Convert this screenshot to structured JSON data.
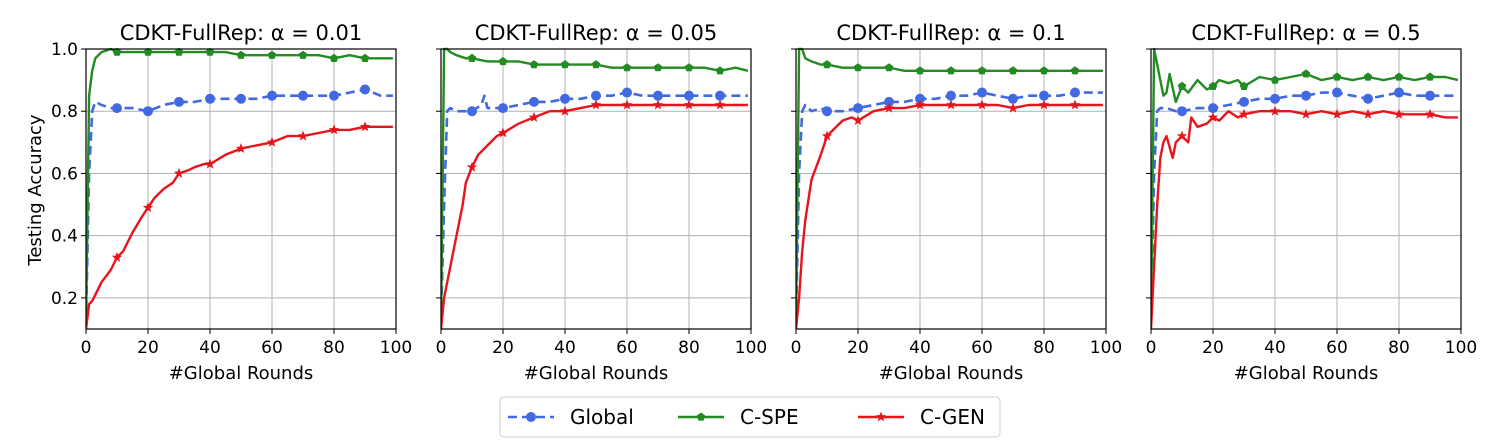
{
  "figure": {
    "ylabel": "Testing Accuracy",
    "xlabel": "#Global Rounds",
    "legend": {
      "placement": "bottom-center",
      "entries": [
        {
          "name": "Global",
          "color": "#4169E1",
          "style": "dashed",
          "marker": "circle"
        },
        {
          "name": "C-SPE",
          "color": "#228B22",
          "style": "solid",
          "marker": "pentagon"
        },
        {
          "name": "C-GEN",
          "color": "#E8141C",
          "style": "solid",
          "marker": "star"
        }
      ]
    }
  },
  "chart_data": [
    {
      "type": "line",
      "title": "CDKT-FullRep: α = 0.01",
      "xlabel": "#Global Rounds",
      "ylabel": "Testing Accuracy",
      "xlim": [
        0,
        100
      ],
      "ylim": [
        0.1,
        1.0
      ],
      "xticks": [
        "0",
        "20",
        "40",
        "60",
        "80",
        "100"
      ],
      "yticks": [
        "0.2",
        "0.4",
        "0.6",
        "0.8",
        "1.0"
      ],
      "grid": true,
      "series": [
        {
          "name": "Global",
          "x": [
            0,
            1,
            2,
            3,
            5,
            8,
            10,
            15,
            20,
            25,
            30,
            35,
            40,
            45,
            50,
            55,
            60,
            65,
            70,
            75,
            80,
            85,
            90,
            95,
            99
          ],
          "y": [
            0.12,
            0.6,
            0.8,
            0.83,
            0.82,
            0.81,
            0.81,
            0.81,
            0.8,
            0.82,
            0.83,
            0.83,
            0.84,
            0.84,
            0.84,
            0.84,
            0.85,
            0.85,
            0.85,
            0.85,
            0.85,
            0.86,
            0.87,
            0.85,
            0.85
          ]
        },
        {
          "name": "C-SPE",
          "x": [
            0,
            1,
            2,
            3,
            5,
            8,
            10,
            15,
            20,
            25,
            30,
            35,
            40,
            45,
            50,
            55,
            60,
            65,
            70,
            75,
            80,
            85,
            90,
            95,
            99
          ],
          "y": [
            0.12,
            0.85,
            0.93,
            0.97,
            0.99,
            1.0,
            0.99,
            0.99,
            0.99,
            0.99,
            0.99,
            0.99,
            0.99,
            0.99,
            0.98,
            0.98,
            0.98,
            0.98,
            0.98,
            0.98,
            0.97,
            0.98,
            0.97,
            0.97,
            0.97
          ]
        },
        {
          "name": "C-GEN",
          "x": [
            0,
            1,
            2,
            3,
            5,
            8,
            10,
            12,
            15,
            18,
            20,
            22,
            25,
            28,
            30,
            33,
            35,
            38,
            40,
            45,
            50,
            55,
            60,
            65,
            70,
            75,
            80,
            85,
            90,
            95,
            99
          ],
          "y": [
            0.1,
            0.18,
            0.19,
            0.21,
            0.25,
            0.29,
            0.33,
            0.35,
            0.41,
            0.46,
            0.49,
            0.52,
            0.55,
            0.57,
            0.6,
            0.61,
            0.62,
            0.63,
            0.63,
            0.66,
            0.68,
            0.69,
            0.7,
            0.72,
            0.72,
            0.73,
            0.74,
            0.74,
            0.75,
            0.75,
            0.75
          ]
        }
      ]
    },
    {
      "type": "line",
      "title": "CDKT-FullRep: α = 0.05",
      "xlabel": "#Global Rounds",
      "ylabel": "",
      "xlim": [
        0,
        100
      ],
      "ylim": [
        0.1,
        1.0
      ],
      "xticks": [
        "0",
        "20",
        "40",
        "60",
        "80",
        "100"
      ],
      "yticks": [
        "0.2",
        "0.4",
        "0.6",
        "0.8",
        "1.0"
      ],
      "grid": true,
      "series": [
        {
          "name": "Global",
          "x": [
            0,
            1,
            2,
            3,
            5,
            8,
            10,
            13,
            14,
            15,
            20,
            25,
            30,
            35,
            40,
            45,
            50,
            55,
            60,
            65,
            70,
            75,
            80,
            85,
            90,
            95,
            99
          ],
          "y": [
            0.12,
            0.5,
            0.8,
            0.81,
            0.8,
            0.8,
            0.8,
            0.82,
            0.85,
            0.81,
            0.81,
            0.82,
            0.83,
            0.83,
            0.84,
            0.84,
            0.85,
            0.85,
            0.86,
            0.85,
            0.85,
            0.85,
            0.85,
            0.85,
            0.85,
            0.85,
            0.85
          ]
        },
        {
          "name": "C-SPE",
          "x": [
            0,
            1,
            2,
            3,
            5,
            8,
            10,
            15,
            20,
            25,
            30,
            35,
            40,
            45,
            50,
            55,
            60,
            65,
            70,
            75,
            80,
            85,
            90,
            95,
            99
          ],
          "y": [
            0.12,
            1.0,
            1.0,
            0.99,
            0.98,
            0.97,
            0.97,
            0.96,
            0.96,
            0.96,
            0.95,
            0.95,
            0.95,
            0.95,
            0.95,
            0.94,
            0.94,
            0.94,
            0.94,
            0.94,
            0.94,
            0.94,
            0.93,
            0.94,
            0.93
          ]
        },
        {
          "name": "C-GEN",
          "x": [
            0,
            1,
            2,
            3,
            5,
            7,
            8,
            10,
            12,
            15,
            18,
            20,
            25,
            30,
            35,
            40,
            45,
            50,
            55,
            60,
            65,
            70,
            75,
            80,
            85,
            90,
            95,
            99
          ],
          "y": [
            0.1,
            0.2,
            0.25,
            0.3,
            0.4,
            0.5,
            0.57,
            0.62,
            0.66,
            0.69,
            0.72,
            0.73,
            0.76,
            0.78,
            0.8,
            0.8,
            0.81,
            0.82,
            0.82,
            0.82,
            0.82,
            0.82,
            0.82,
            0.82,
            0.82,
            0.82,
            0.82,
            0.82
          ]
        }
      ]
    },
    {
      "type": "line",
      "title": "CDKT-FullRep: α = 0.1",
      "xlabel": "#Global Rounds",
      "ylabel": "",
      "xlim": [
        0,
        100
      ],
      "ylim": [
        0.1,
        1.0
      ],
      "xticks": [
        "0",
        "20",
        "40",
        "60",
        "80",
        "100"
      ],
      "yticks": [
        "0.2",
        "0.4",
        "0.6",
        "0.8",
        "1.0"
      ],
      "grid": true,
      "series": [
        {
          "name": "Global",
          "x": [
            0,
            1,
            2,
            3,
            5,
            8,
            10,
            15,
            20,
            25,
            30,
            35,
            40,
            45,
            50,
            55,
            60,
            65,
            70,
            75,
            80,
            85,
            90,
            95,
            99
          ],
          "y": [
            0.12,
            0.6,
            0.8,
            0.82,
            0.8,
            0.81,
            0.8,
            0.8,
            0.81,
            0.82,
            0.83,
            0.83,
            0.84,
            0.84,
            0.85,
            0.85,
            0.86,
            0.85,
            0.84,
            0.85,
            0.85,
            0.85,
            0.86,
            0.86,
            0.86
          ]
        },
        {
          "name": "C-SPE",
          "x": [
            0,
            1,
            2,
            3,
            5,
            8,
            10,
            15,
            20,
            25,
            30,
            35,
            40,
            45,
            50,
            55,
            60,
            65,
            70,
            75,
            80,
            85,
            90,
            95,
            99
          ],
          "y": [
            0.12,
            1.0,
            1.0,
            0.97,
            0.96,
            0.95,
            0.95,
            0.94,
            0.94,
            0.94,
            0.94,
            0.93,
            0.93,
            0.93,
            0.93,
            0.93,
            0.93,
            0.93,
            0.93,
            0.93,
            0.93,
            0.93,
            0.93,
            0.93,
            0.93
          ]
        },
        {
          "name": "C-GEN",
          "x": [
            0,
            1,
            2,
            3,
            5,
            8,
            10,
            12,
            15,
            18,
            20,
            25,
            30,
            35,
            40,
            45,
            50,
            55,
            60,
            65,
            70,
            75,
            80,
            85,
            90,
            95,
            99
          ],
          "y": [
            0.1,
            0.2,
            0.35,
            0.45,
            0.58,
            0.66,
            0.72,
            0.74,
            0.77,
            0.78,
            0.77,
            0.8,
            0.81,
            0.81,
            0.82,
            0.82,
            0.82,
            0.82,
            0.82,
            0.82,
            0.81,
            0.82,
            0.82,
            0.82,
            0.82,
            0.82,
            0.82
          ]
        }
      ]
    },
    {
      "type": "line",
      "title": "CDKT-FullRep: α = 0.5",
      "xlabel": "#Global Rounds",
      "ylabel": "",
      "xlim": [
        0,
        100
      ],
      "ylim": [
        0.1,
        1.0
      ],
      "xticks": [
        "0",
        "20",
        "40",
        "60",
        "80",
        "100"
      ],
      "yticks": [
        "0.2",
        "0.4",
        "0.6",
        "0.8",
        "1.0"
      ],
      "grid": true,
      "series": [
        {
          "name": "Global",
          "x": [
            0,
            1,
            2,
            3,
            5,
            8,
            10,
            15,
            20,
            25,
            30,
            35,
            40,
            45,
            50,
            55,
            60,
            65,
            70,
            75,
            80,
            85,
            90,
            95,
            99
          ],
          "y": [
            0.12,
            0.6,
            0.8,
            0.81,
            0.81,
            0.8,
            0.8,
            0.81,
            0.81,
            0.82,
            0.83,
            0.84,
            0.84,
            0.85,
            0.85,
            0.86,
            0.86,
            0.85,
            0.84,
            0.85,
            0.86,
            0.85,
            0.85,
            0.85,
            0.85
          ]
        },
        {
          "name": "C-SPE",
          "x": [
            0,
            1,
            2,
            3,
            4,
            5,
            6,
            8,
            10,
            12,
            15,
            18,
            20,
            22,
            25,
            28,
            30,
            35,
            40,
            45,
            50,
            55,
            60,
            65,
            70,
            75,
            80,
            85,
            90,
            95,
            99
          ],
          "y": [
            0.12,
            1.0,
            0.95,
            0.9,
            0.85,
            0.86,
            0.92,
            0.83,
            0.88,
            0.86,
            0.9,
            0.87,
            0.88,
            0.9,
            0.89,
            0.9,
            0.88,
            0.91,
            0.9,
            0.91,
            0.92,
            0.9,
            0.91,
            0.9,
            0.91,
            0.9,
            0.91,
            0.9,
            0.91,
            0.91,
            0.9
          ]
        },
        {
          "name": "C-GEN",
          "x": [
            0,
            1,
            2,
            3,
            4,
            5,
            7,
            8,
            10,
            12,
            13,
            15,
            18,
            20,
            22,
            25,
            28,
            30,
            35,
            40,
            45,
            50,
            55,
            60,
            65,
            70,
            75,
            80,
            85,
            90,
            95,
            99
          ],
          "y": [
            0.1,
            0.3,
            0.5,
            0.65,
            0.7,
            0.72,
            0.65,
            0.7,
            0.72,
            0.7,
            0.78,
            0.75,
            0.76,
            0.78,
            0.77,
            0.8,
            0.78,
            0.79,
            0.8,
            0.8,
            0.8,
            0.79,
            0.8,
            0.79,
            0.8,
            0.79,
            0.8,
            0.79,
            0.79,
            0.79,
            0.78,
            0.78
          ]
        }
      ]
    }
  ]
}
